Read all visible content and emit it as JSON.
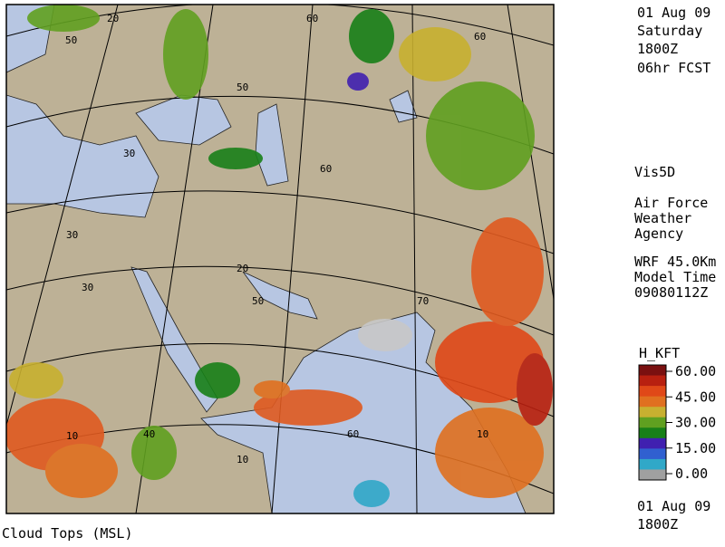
{
  "header": {
    "date": "01 Aug 09",
    "day": "Saturday",
    "time": "1800Z",
    "forecast": "06hr FCST"
  },
  "info": {
    "software": "Vis5D",
    "agency": [
      "Air Force",
      "Weather",
      "Agency"
    ],
    "model": [
      "WRF 45.0Km",
      "Model Time",
      "09080112Z"
    ]
  },
  "legend": {
    "title": "H_KFT",
    "ticks": [
      {
        "value": 60,
        "label": "60.00"
      },
      {
        "value": 45,
        "label": "45.00"
      },
      {
        "value": 30,
        "label": "30.00"
      },
      {
        "value": 15,
        "label": "15.00"
      },
      {
        "value": 0,
        "label": "0.00"
      }
    ],
    "colors": [
      "#7a1010",
      "#b82010",
      "#e04818",
      "#e07020",
      "#c8b030",
      "#60a020",
      "#188018",
      "#4020b0",
      "#3060d0",
      "#30a8c8",
      "#a0a0a0"
    ]
  },
  "map": {
    "caption": "Cloud Tops (MSL)",
    "grid_labels": [
      "20",
      "60",
      "50",
      "60",
      "50",
      "30",
      "60",
      "30",
      "30",
      "20",
      "50",
      "70",
      "10",
      "40",
      "60",
      "10",
      "10"
    ]
  },
  "footer": {
    "date": "01 Aug 09",
    "time": "1800Z"
  }
}
